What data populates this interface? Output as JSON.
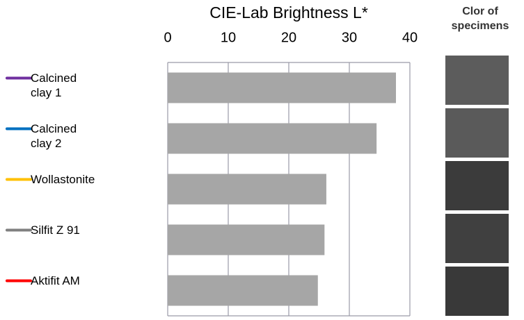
{
  "chart_data": {
    "type": "bar",
    "orientation": "horizontal",
    "title": "CIE-Lab Brightness L*",
    "side_heading": "Clor of specimens",
    "categories": [
      "Calcined clay 1",
      "Calcined clay 2",
      "Wollastonite",
      "Silfit Z 91",
      "Aktifit AM"
    ],
    "label_colors": [
      "#7030a0",
      "#0070c0",
      "#ffc000",
      "#808080",
      "#ff0000"
    ],
    "values": [
      37.7,
      34.5,
      26.2,
      25.9,
      24.8
    ],
    "color": "#a6a6a6",
    "xlim": [
      0,
      40
    ],
    "xticks": [
      0,
      10,
      20,
      30,
      40
    ],
    "grid": true
  }
}
